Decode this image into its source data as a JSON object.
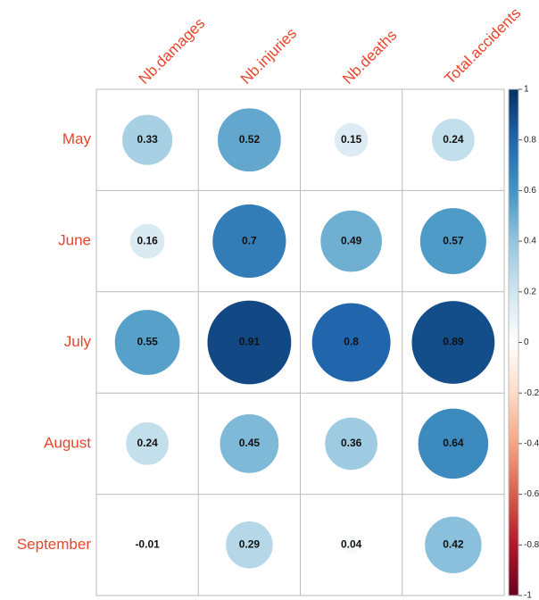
{
  "chart_data": {
    "type": "corrplot",
    "rows": [
      "May",
      "June",
      "July",
      "August",
      "September"
    ],
    "columns": [
      "Nb.damages",
      "Nb.injuries",
      "Nb.deaths",
      "Total.accidents"
    ],
    "values": [
      [
        0.33,
        0.52,
        0.15,
        0.24
      ],
      [
        0.16,
        0.7,
        0.49,
        0.57
      ],
      [
        0.55,
        0.91,
        0.8,
        0.89
      ],
      [
        0.24,
        0.45,
        0.36,
        0.64
      ],
      [
        -0.01,
        0.29,
        0.04,
        0.42
      ]
    ],
    "clim": [
      -1,
      1
    ],
    "colorbar_ticks": [
      1,
      0.8,
      0.6,
      0.4,
      0.2,
      0,
      -0.2,
      -0.4,
      -0.6,
      -0.8,
      -1
    ],
    "colorscale": [
      "#67001F",
      "#B2182B",
      "#D6604D",
      "#F4A582",
      "#FDDBC7",
      "#FFFFFF",
      "#D1E5F0",
      "#92C5DE",
      "#4393C3",
      "#2166AC",
      "#053061"
    ]
  }
}
